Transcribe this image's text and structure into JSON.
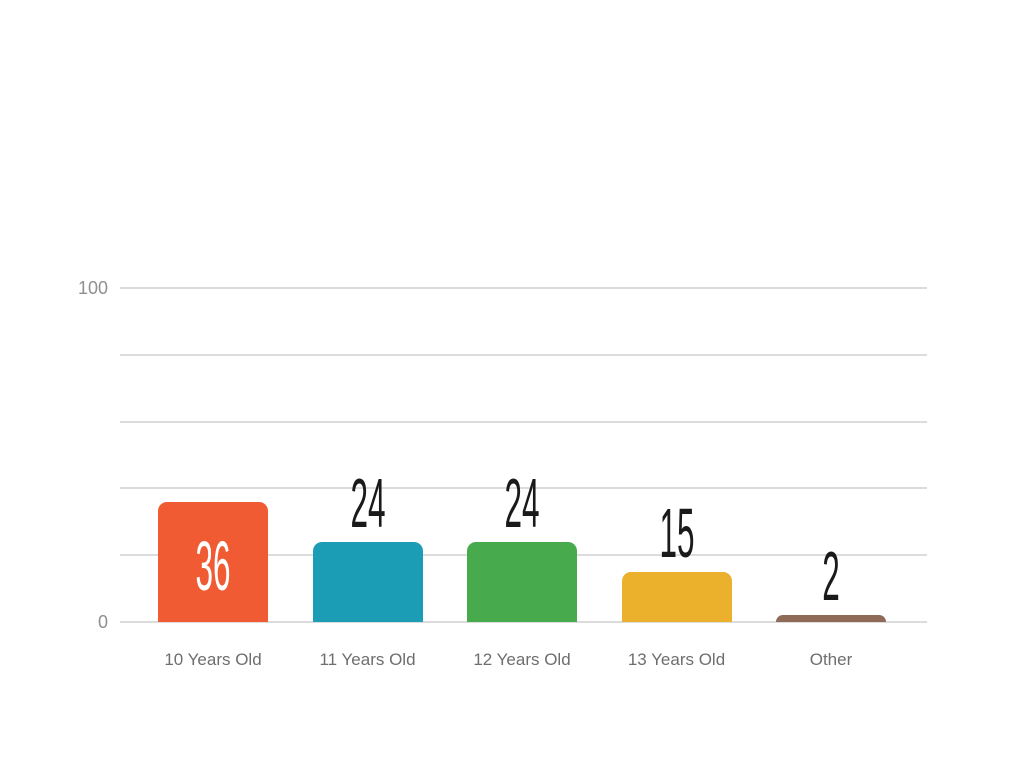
{
  "chart_data": {
    "type": "bar",
    "title": "",
    "xlabel": "",
    "ylabel": "",
    "categories": [
      "10 Years Old",
      "11 Years Old",
      "12 Years Old",
      "13 Years Old",
      "Other"
    ],
    "values": [
      36,
      24,
      24,
      15,
      2
    ],
    "value_labels": [
      "36",
      "24",
      "24",
      "15",
      "2"
    ],
    "bar_colors": [
      "#F05B33",
      "#1B9EB5",
      "#47AB4D",
      "#EBB12C",
      "#8F6A59"
    ],
    "value_label_colors": [
      "#FFFFFF",
      "#1A1A1A",
      "#1A1A1A",
      "#1A1A1A",
      "#1A1A1A"
    ],
    "value_label_placement": [
      "inside",
      "above",
      "above",
      "above",
      "above"
    ],
    "ylim": [
      0,
      100
    ],
    "gridline_values": [
      0,
      20,
      40,
      60,
      80,
      100
    ],
    "ytick_labels": [
      {
        "value": 100,
        "label": "100"
      },
      {
        "value": 0,
        "label": "0"
      }
    ],
    "legend": "none",
    "grid": "horizontal",
    "background": "#FFFFFF",
    "gridline_color": "#DCDCDC",
    "axis_label_color": "#8F8F8F",
    "category_label_color": "#6E6E6E"
  }
}
